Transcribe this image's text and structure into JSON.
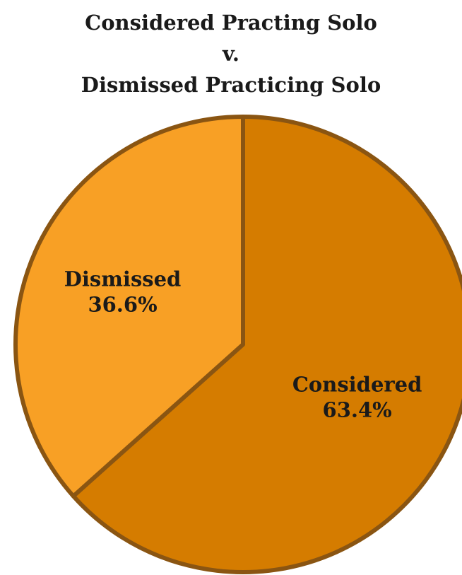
{
  "title_lines": [
    "Considered Practing Solo",
    "v.",
    "Dismissed Practicing Solo"
  ],
  "chart_data": {
    "type": "pie",
    "slices": [
      {
        "label": "Considered",
        "value": 63.4,
        "value_label": "63.4%",
        "color": "#d57c00"
      },
      {
        "label": "Dismissed",
        "value": 36.6,
        "value_label": "36.6%",
        "color": "#f8a025"
      }
    ],
    "border_color": "#8a5512"
  }
}
